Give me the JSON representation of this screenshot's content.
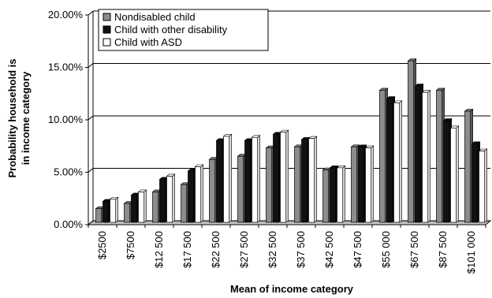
{
  "chart_data": {
    "type": "bar",
    "title": "",
    "xlabel": "Mean of income category",
    "ylabel_lines": [
      "Probability household is",
      "in income category"
    ],
    "ylim": [
      0,
      20
    ],
    "yticks": [
      0,
      5,
      10,
      15,
      20
    ],
    "ytick_labels": [
      "0.00%",
      "5.00%",
      "10.00%",
      "15.00%",
      "20.00%"
    ],
    "y_unit": "percent",
    "grid": true,
    "legend_position": "top-left",
    "categories": [
      "$2500",
      "$7500",
      "$12 500",
      "$17 500",
      "$22 500",
      "$27 500",
      "$32 500",
      "$37 500",
      "$42 500",
      "$47 500",
      "$55 000",
      "$67 500",
      "$87 500",
      "$101 000"
    ],
    "series": [
      {
        "name": "Nondisabled child",
        "color": "#8c8c8c",
        "values": [
          1.3,
          1.8,
          2.9,
          3.6,
          6.0,
          6.3,
          7.1,
          7.2,
          5.0,
          7.2,
          12.6,
          15.4,
          12.6,
          10.6
        ]
      },
      {
        "name": "Child with other disability",
        "color": "#111111",
        "values": [
          2.0,
          2.6,
          4.1,
          4.9,
          7.8,
          7.8,
          8.4,
          7.9,
          5.2,
          7.2,
          11.8,
          13.0,
          9.7,
          7.5
        ]
      },
      {
        "name": "Child with ASD",
        "color": "#ffffff",
        "values": [
          2.2,
          2.9,
          4.4,
          5.3,
          8.2,
          8.1,
          8.6,
          8.0,
          5.2,
          7.1,
          11.4,
          12.4,
          9.0,
          6.8
        ]
      }
    ]
  }
}
